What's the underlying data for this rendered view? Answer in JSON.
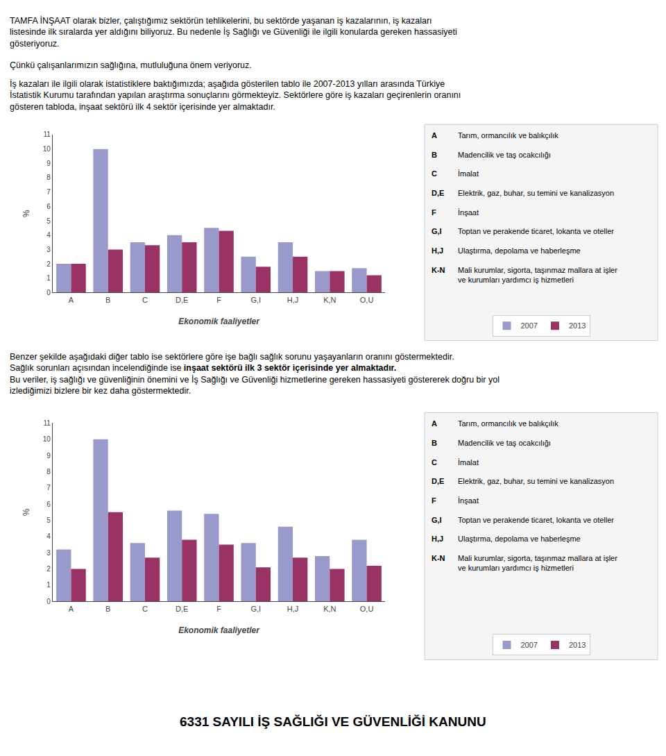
{
  "title": "6331 SAYILI İŞ SAĞLIĞI VE GÜVENLİĞİ KANUNU",
  "text_blocks": [
    "TAMFA İNŞAAT olarak bizler, çalıştığımız sektörün tehlikelerini, bu sektörde yaşanan iş kazalarının, iş kazaları\nlistesinde ilk sıralarda yer aldığını biliyoruz. Bu nedenle İş Sağlığı ve Güvenliği ile ilgili konularda gereken hassasiyeti\ngösteriyoruz.",
    "Çünkü çalışanlarımızın sağlığına, mutluluğuna önem veriyoruz.",
    "İş kazaları ile ilgili olarak istatistiklere baktığımızda; aşağıda gösterilen tablo ile 2007-2013 yılları arasında Türkiye\nİstatistik Kurumu tarafından yapılan araştırma sonuçlarını görmekteyiz. Sektörlere göre iş kazaları geçirenlerin oranını\ngösteren tabloda, inşaat sektörü ilk 4 sektör içerisinde yer almaktadır.",
    [
      "Benzer şekilde aşağıdaki diğer tablo ise sektörlere göre işe bağlı sağlık sorunu yaşayanların oranını göstermektedir.\nSağlık sorunları açısından incelendiğinde ise ",
      "inşaat sektörü ilk 3 sektör içerisinde yer almaktadır.",
      "Bu veriler, iş sağlığı ve güvenliğinin önemini ve İş Sağlığı ve Güvenliği hizmetlerine gereken hassasiyeti göstererek doğru bir yol\nizlediğimizi bizlere bir kez daha göstermektedir."
    ]
  ],
  "chart_data": [
    {
      "type": "bar",
      "categories": [
        "A",
        "B",
        "C",
        "D,E",
        "F",
        "G,I",
        "H,J",
        "K,N",
        "O,U"
      ],
      "series": [
        {
          "name": "2007",
          "color": "#9999cc",
          "values": [
            2.0,
            10.0,
            3.5,
            4.0,
            4.5,
            2.5,
            3.5,
            1.5,
            1.7
          ]
        },
        {
          "name": "2013",
          "color": "#993366",
          "values": [
            2.0,
            3.0,
            3.3,
            3.5,
            4.3,
            1.8,
            2.5,
            1.5,
            1.2
          ]
        }
      ],
      "xlabel": "Ekonomik faaliyetler",
      "ylabel": "%",
      "ylim": [
        0,
        11
      ],
      "yticks": [
        0,
        1,
        2,
        3,
        4,
        5,
        6,
        7,
        8,
        9,
        10,
        11
      ],
      "grid": false,
      "legend": "bottom",
      "annotations": [
        [
          "A",
          "Tarım, ormancılık ve balıkçılık"
        ],
        [
          "B",
          "Madencilik ve taş ocakcılığı"
        ],
        [
          "C",
          "İmalat"
        ],
        [
          "D,E",
          "Elektrik, gaz, buhar, su temini ve kanalizasyon"
        ],
        [
          "F",
          "İnşaat"
        ],
        [
          "G,I",
          "Toptan ve perakende ticaret, lokanta ve oteller"
        ],
        [
          "H,J",
          "Ulaştırma, depolama ve haberleşme"
        ],
        [
          "K-N",
          "Mali kurumlar, sigorta, taşınmaz mallara at işler\nve kurumları yardımcı iş hizmetleri"
        ]
      ]
    },
    {
      "type": "bar",
      "categories": [
        "A",
        "B",
        "C",
        "D,E",
        "F",
        "G,I",
        "H,J",
        "K,N",
        "O,U"
      ],
      "series": [
        {
          "name": "2007",
          "color": "#9999cc",
          "values": [
            3.2,
            10.0,
            3.6,
            5.6,
            5.4,
            3.6,
            4.6,
            2.8,
            3.8
          ]
        },
        {
          "name": "2013",
          "color": "#993366",
          "values": [
            2.0,
            5.5,
            2.7,
            3.8,
            3.5,
            2.1,
            2.7,
            2.0,
            2.2
          ]
        }
      ],
      "xlabel": "Ekonomik faaliyetler",
      "ylabel": "%",
      "ylim": [
        0,
        11
      ],
      "yticks": [
        0,
        1,
        2,
        3,
        4,
        5,
        6,
        7,
        8,
        9,
        10,
        11
      ],
      "grid": false,
      "legend": "bottom",
      "annotations": [
        [
          "A",
          "Tarım, ormancılık ve balıkçılık"
        ],
        [
          "B",
          "Madencilik ve taş ocakcılığı"
        ],
        [
          "C",
          "İmalat"
        ],
        [
          "D,E",
          "Elektrik, gaz, buhar, su temini ve kanalizasyon"
        ],
        [
          "F",
          "İnşaat"
        ],
        [
          "G,I",
          "Toptan ve perakende ticaret, lokanta ve oteller"
        ],
        [
          "H,J",
          "Ulaştırma, depolama ve haberleşme"
        ],
        [
          "K-N",
          "Mali kurumlar, sigorta, taşınmaz mallara at işler\nve kurumları yardımcı iş hizmetleri"
        ]
      ]
    }
  ]
}
